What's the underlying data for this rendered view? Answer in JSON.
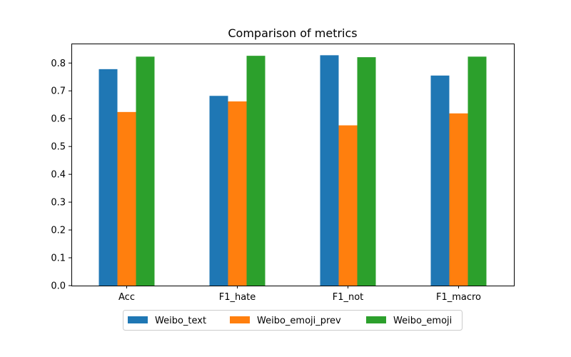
{
  "chart_data": {
    "type": "bar",
    "title": "Comparison of metrics",
    "xlabel": "",
    "ylabel": "",
    "categories": [
      "Acc",
      "F1_hate",
      "F1_not",
      "F1_macro"
    ],
    "series": [
      {
        "name": "Weibo_text",
        "color": "#1f77b4",
        "values": [
          0.778,
          0.682,
          0.828,
          0.755
        ]
      },
      {
        "name": "Weibo_emoji_prev",
        "color": "#ff7f0e",
        "values": [
          0.624,
          0.662,
          0.576,
          0.619
        ]
      },
      {
        "name": "Weibo_emoji",
        "color": "#2ca02c",
        "values": [
          0.823,
          0.826,
          0.821,
          0.823
        ]
      }
    ],
    "ylim": [
      0,
      0.87
    ],
    "yticks": [
      "0.0",
      "0.1",
      "0.2",
      "0.3",
      "0.4",
      "0.5",
      "0.6",
      "0.7",
      "0.8"
    ],
    "grid": false,
    "legend_position": "bottom-center"
  }
}
